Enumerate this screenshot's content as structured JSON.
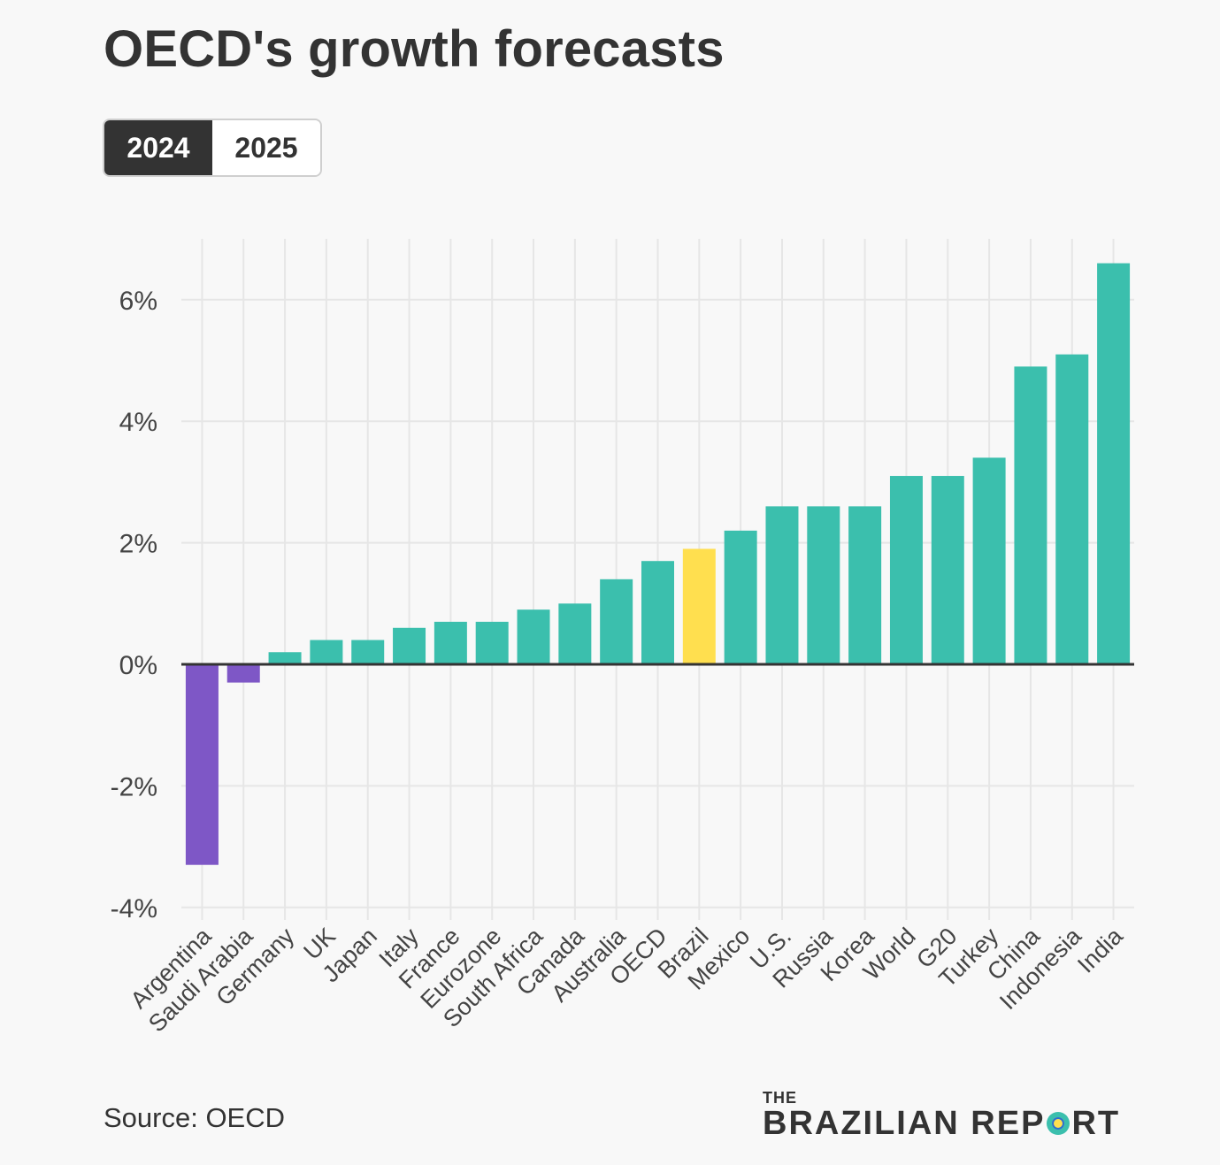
{
  "title": "OECD's growth forecasts",
  "tabs": [
    {
      "label": "2024",
      "active": true
    },
    {
      "label": "2025",
      "active": false
    }
  ],
  "source": "Source: OECD",
  "logo": {
    "the": "THE",
    "part1": "BRAZILIAN REP",
    "part2": "RT"
  },
  "colors": {
    "positive": "#3bbfad",
    "negative": "#7e57c6",
    "highlight": "#ffdf4f",
    "zero_line": "#333333",
    "grid": "#e6e6e6"
  },
  "chart_data": {
    "type": "bar",
    "categories": [
      "Argentina",
      "Saudi Arabia",
      "Germany",
      "UK",
      "Japan",
      "Italy",
      "France",
      "Eurozone",
      "South Africa",
      "Canada",
      "Australia",
      "OECD",
      "Brazil",
      "Mexico",
      "U.S.",
      "Russia",
      "Korea",
      "World",
      "G20",
      "Turkey",
      "China",
      "Indonesia",
      "India"
    ],
    "values": [
      -3.3,
      -0.3,
      0.2,
      0.4,
      0.4,
      0.6,
      0.7,
      0.7,
      0.9,
      1.0,
      1.4,
      1.7,
      1.9,
      2.2,
      2.6,
      2.6,
      2.6,
      3.1,
      3.1,
      3.4,
      4.9,
      5.1,
      6.6
    ],
    "highlight": "Brazil",
    "ylim": [
      -4.2,
      7
    ],
    "yticks": [
      -4,
      -2,
      0,
      2,
      4,
      6
    ],
    "ytick_labels": [
      "-4%",
      "-2%",
      "0%",
      "2%",
      "4%",
      "6%"
    ],
    "xlabel": "",
    "ylabel": "",
    "grid": true
  }
}
